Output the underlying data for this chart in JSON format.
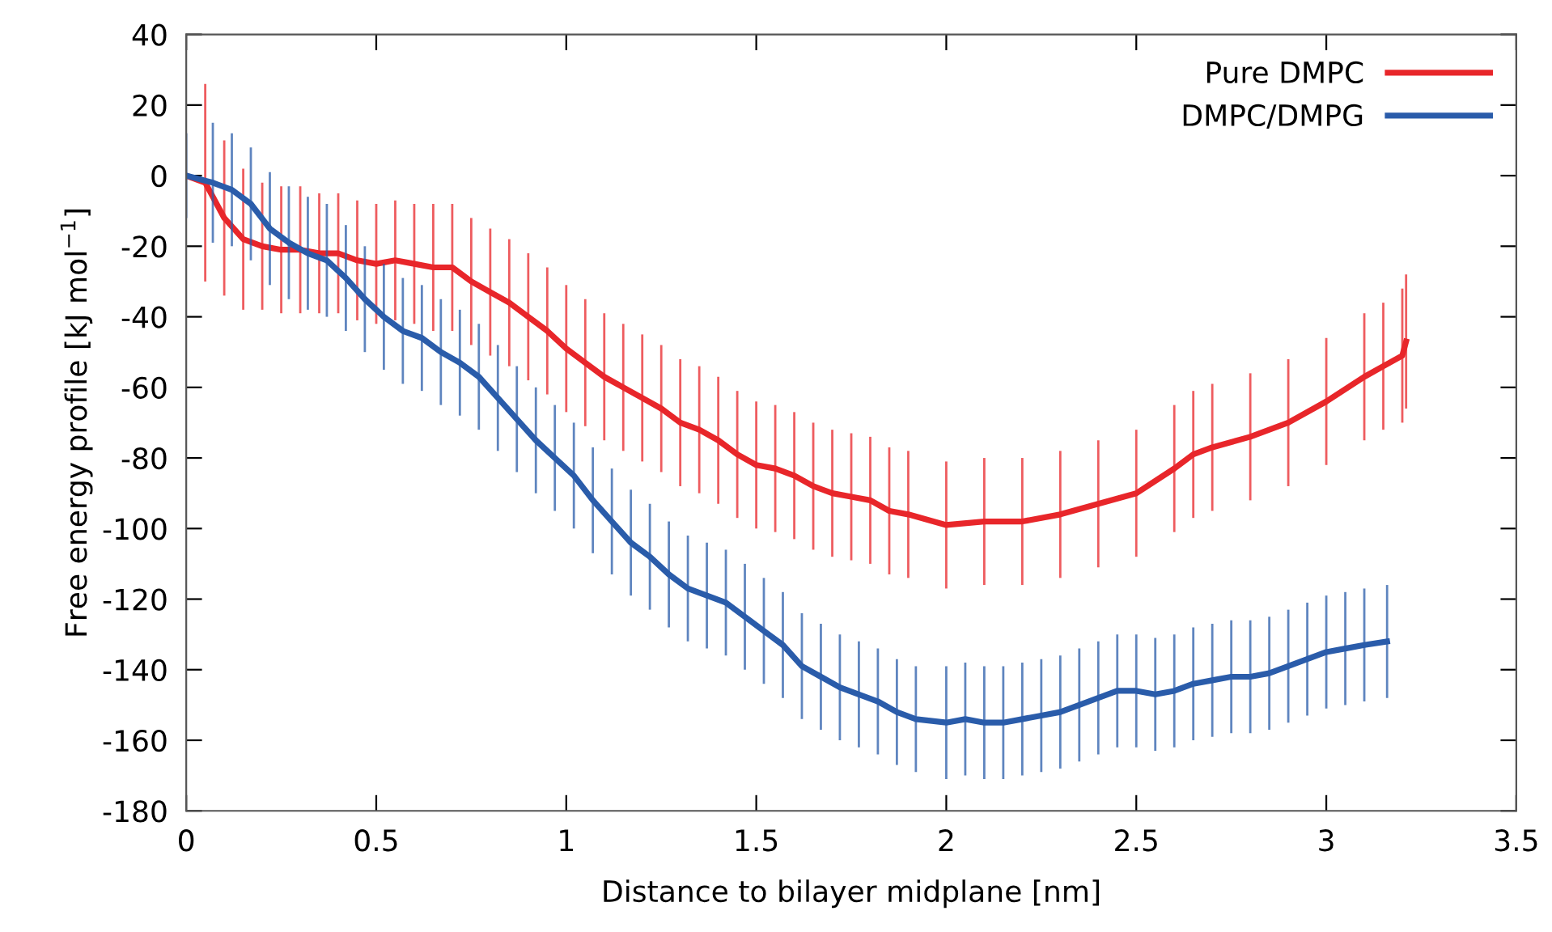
{
  "chart_data": {
    "type": "line",
    "xlabel": "Distance to bilayer midplane [nm]",
    "ylabel": "Free energy profile [kJ mol$^{−1}$]",
    "xlim": [
      0,
      3.5
    ],
    "xticks": [
      0,
      0.5,
      1,
      1.5,
      2,
      2.5,
      3,
      3.5
    ],
    "ylim": [
      -180,
      40
    ],
    "yticks": [
      -180,
      -160,
      -140,
      -120,
      -100,
      -80,
      -60,
      -40,
      -20,
      0,
      20,
      40
    ],
    "grid": false,
    "legend": "top right",
    "marker": "none",
    "line_style": "solid",
    "series": [
      {
        "name": "Pure DMPC",
        "color": "#e8262a",
        "x": [
          0,
          0.05,
          0.1,
          0.15,
          0.2,
          0.25,
          0.3,
          0.35,
          0.4,
          0.45,
          0.5,
          0.55,
          0.6,
          0.65,
          0.7,
          0.75,
          0.8,
          0.85,
          0.9,
          0.95,
          1.0,
          1.05,
          1.1,
          1.15,
          1.2,
          1.25,
          1.3,
          1.35,
          1.4,
          1.45,
          1.5,
          1.55,
          1.6,
          1.65,
          1.7,
          1.75,
          1.8,
          1.85,
          1.9,
          2.0,
          2.1,
          2.2,
          2.3,
          2.4,
          2.5,
          2.6,
          2.65,
          2.7,
          2.8,
          2.9,
          3.0,
          3.1,
          3.15,
          3.2,
          3.21
        ],
        "values": [
          0,
          -2,
          -12,
          -18,
          -20,
          -21,
          -21,
          -22,
          -22,
          -24,
          -25,
          -24,
          -25,
          -26,
          -26,
          -30,
          -33,
          -36,
          -40,
          -44,
          -49,
          -53,
          -57,
          -60,
          -63,
          -66,
          -70,
          -72,
          -75,
          -79,
          -82,
          -83,
          -85,
          -88,
          -90,
          -91,
          -92,
          -95,
          -96,
          -99,
          -98,
          -98,
          -96,
          -93,
          -90,
          -83,
          -79,
          -77,
          -74,
          -70,
          -64,
          -57,
          -54,
          -51,
          -47
        ],
        "errors": [
          null,
          28,
          22,
          20,
          18,
          18,
          18,
          17,
          17,
          17,
          17,
          17,
          17,
          18,
          18,
          18,
          18,
          18,
          18,
          18,
          18,
          18,
          18,
          18,
          18,
          18,
          18,
          18,
          18,
          18,
          18,
          18,
          18,
          18,
          18,
          18,
          18,
          18,
          18,
          18,
          18,
          18,
          18,
          18,
          18,
          18,
          18,
          18,
          18,
          18,
          18,
          18,
          18,
          19,
          19
        ]
      },
      {
        "name": "DMPC/DMPG",
        "color": "#2a5caa",
        "x": [
          0,
          0.07,
          0.12,
          0.17,
          0.22,
          0.27,
          0.32,
          0.37,
          0.42,
          0.47,
          0.52,
          0.57,
          0.62,
          0.67,
          0.72,
          0.77,
          0.82,
          0.87,
          0.92,
          0.97,
          1.02,
          1.07,
          1.12,
          1.17,
          1.22,
          1.27,
          1.32,
          1.37,
          1.42,
          1.47,
          1.52,
          1.57,
          1.62,
          1.67,
          1.72,
          1.77,
          1.82,
          1.87,
          1.92,
          2.0,
          2.05,
          2.1,
          2.15,
          2.2,
          2.25,
          2.3,
          2.35,
          2.4,
          2.45,
          2.5,
          2.55,
          2.6,
          2.65,
          2.7,
          2.75,
          2.8,
          2.85,
          2.9,
          2.95,
          3.0,
          3.05,
          3.1,
          3.16
        ],
        "values": [
          0,
          -2,
          -4,
          -8,
          -15,
          -19,
          -22,
          -24,
          -29,
          -35,
          -40,
          -44,
          -46,
          -50,
          -53,
          -57,
          -63,
          -69,
          -75,
          -80,
          -85,
          -92,
          -98,
          -104,
          -108,
          -113,
          -117,
          -119,
          -121,
          -125,
          -129,
          -133,
          -139,
          -142,
          -145,
          -147,
          -149,
          -152,
          -154,
          -155,
          -154,
          -155,
          -155,
          -154,
          -153,
          -152,
          -150,
          -148,
          -146,
          -146,
          -147,
          -146,
          -144,
          -143,
          -142,
          -142,
          -141,
          -139,
          -137,
          -135,
          -134,
          -133,
          -132
        ],
        "errors": [
          12,
          17,
          16,
          16,
          16,
          16,
          16,
          16,
          15,
          15,
          15,
          15,
          15,
          15,
          15,
          15,
          15,
          15,
          15,
          15,
          15,
          15,
          15,
          15,
          15,
          15,
          15,
          15,
          15,
          15,
          15,
          15,
          15,
          15,
          15,
          15,
          15,
          15,
          15,
          16,
          16,
          16,
          16,
          16,
          16,
          16,
          16,
          16,
          16,
          16,
          16,
          16,
          16,
          16,
          16,
          16,
          16,
          16,
          16,
          16,
          16,
          16,
          16
        ]
      }
    ]
  }
}
